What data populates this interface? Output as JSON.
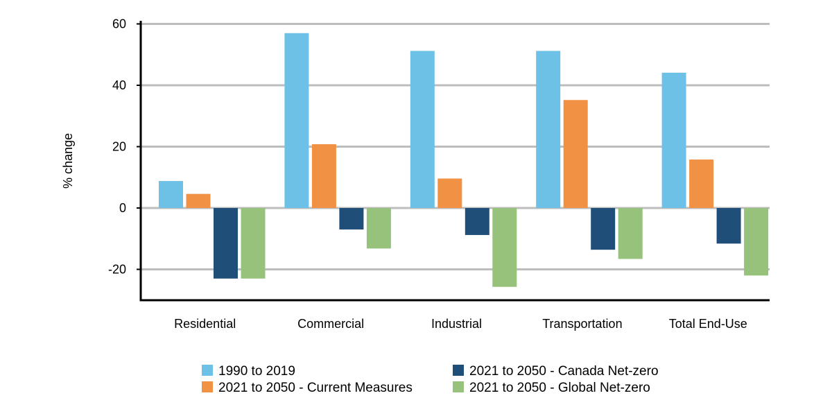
{
  "chart_data": {
    "type": "bar",
    "title": "",
    "xlabel": "",
    "ylabel": "% change",
    "ylim": [
      -30,
      60
    ],
    "yticks": [
      60,
      40,
      20,
      0,
      -20
    ],
    "ytick_labels": [
      "60",
      "40",
      "20",
      "0",
      "-20"
    ],
    "grid": "horizontal",
    "legend_position": "bottom",
    "categories": [
      "Residential",
      "Commercial",
      "Industrial",
      "Transportation",
      "Total End-Use"
    ],
    "series": [
      {
        "name": "1990 to 2019",
        "color": "#6dc0e6",
        "values": [
          8.8,
          57.0,
          51.2,
          51.2,
          44.1
        ]
      },
      {
        "name": "2021 to 2050 - Current Measures",
        "color": "#f09144",
        "values": [
          4.6,
          20.8,
          9.6,
          35.2,
          15.8
        ]
      },
      {
        "name": "2021 to 2050 - Canada Net-zero",
        "color": "#1f4e79",
        "values": [
          -23.0,
          -7.0,
          -8.8,
          -13.6,
          -11.6
        ]
      },
      {
        "name": "2021 to 2050 - Global Net-zero",
        "color": "#96c27c",
        "values": [
          -23.0,
          -13.2,
          -25.7,
          -16.6,
          -22.0
        ]
      }
    ],
    "gridline_color": "#bdbdbd",
    "axis_color": "#000000"
  }
}
